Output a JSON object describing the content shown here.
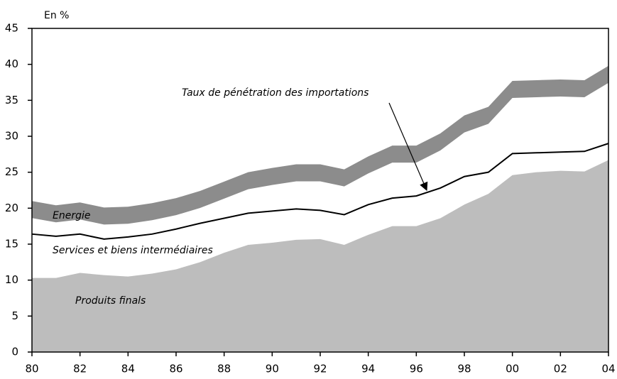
{
  "chart_data": {
    "type": "area",
    "y_label": "En %",
    "annotation": "Taux de pénétration des importations",
    "categories": [
      "80",
      null,
      "82",
      null,
      "84",
      null,
      "86",
      null,
      "88",
      null,
      "90",
      null,
      "92",
      null,
      "94",
      null,
      "96",
      null,
      "98",
      null,
      "00",
      null,
      "02",
      null,
      "04"
    ],
    "series": [
      {
        "name": "Produits finals",
        "color": "#bdbdbd",
        "values": [
          10.3,
          10.3,
          11,
          10.7,
          10.5,
          10.9,
          11.5,
          12.5,
          13.8,
          14.9,
          15.2,
          15.6,
          15.7,
          14.9,
          16.3,
          17.5,
          17.5,
          18.6,
          20.5,
          22,
          24.6,
          25,
          25.2,
          25.1,
          26.7
        ]
      },
      {
        "name": "Services et biens intermédiaires",
        "color": "#000000",
        "values": [
          6.1,
          5.8,
          5.4,
          5.0,
          5.5,
          5.5,
          5.6,
          5.4,
          4.8,
          4.4,
          4.4,
          4.3,
          4.0,
          4.2,
          4.2,
          3.9,
          4.2,
          4.2,
          3.9,
          3.0,
          3.0,
          2.7,
          2.6,
          2.8,
          2.3
        ]
      },
      {
        "name": "Energie",
        "color": "#8c8c8c",
        "values": [
          4.6,
          4.3,
          4.4,
          4.4,
          4.2,
          4.3,
          4.3,
          4.5,
          5.1,
          5.7,
          6.0,
          6.2,
          6.4,
          6.3,
          6.7,
          7.3,
          7.0,
          7.6,
          8.5,
          9.1,
          10.1,
          10.1,
          10.1,
          9.9,
          10.8
        ]
      }
    ],
    "ylim": [
      0,
      45
    ],
    "yticks": [
      0,
      5,
      10,
      15,
      20,
      25,
      30,
      35,
      40,
      45
    ]
  }
}
